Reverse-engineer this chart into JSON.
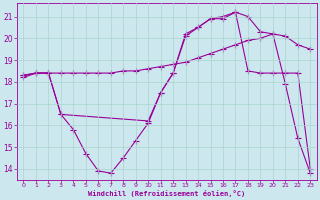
{
  "xlabel": "Windchill (Refroidissement éolien,°C)",
  "background_color": "#cce8ee",
  "grid_color": "#aad4cc",
  "line_color": "#990099",
  "xlim": [
    -0.5,
    23.5
  ],
  "ylim": [
    13.5,
    21.6
  ],
  "yticks": [
    14,
    15,
    16,
    17,
    18,
    19,
    20,
    21
  ],
  "xticks": [
    0,
    1,
    2,
    3,
    4,
    5,
    6,
    7,
    8,
    9,
    10,
    11,
    12,
    13,
    14,
    15,
    16,
    17,
    18,
    19,
    20,
    21,
    22,
    23
  ],
  "series1_x": [
    0,
    1,
    2,
    3,
    4,
    5,
    6,
    7,
    8,
    9,
    10,
    11,
    12,
    13,
    14,
    15,
    16,
    17,
    18,
    19,
    20,
    21,
    22,
    23
  ],
  "series1_y": [
    18.2,
    18.4,
    18.4,
    16.5,
    15.8,
    14.7,
    13.9,
    13.8,
    14.5,
    15.3,
    16.1,
    17.5,
    18.4,
    20.1,
    20.5,
    20.9,
    20.9,
    21.2,
    21.0,
    20.3,
    20.2,
    17.9,
    15.4,
    13.8
  ],
  "series2_x": [
    0,
    1,
    2,
    3,
    4,
    5,
    6,
    7,
    8,
    9,
    10,
    11,
    12,
    13,
    14,
    15,
    16,
    17,
    18,
    19,
    20,
    21,
    22,
    23
  ],
  "series2_y": [
    18.3,
    18.4,
    18.4,
    18.4,
    18.4,
    18.4,
    18.4,
    18.4,
    18.5,
    18.5,
    18.6,
    18.7,
    18.8,
    18.9,
    19.1,
    19.3,
    19.5,
    19.7,
    19.9,
    20.0,
    20.2,
    20.1,
    19.7,
    19.5
  ],
  "series3_x": [
    0,
    1,
    2,
    3,
    10,
    11,
    12,
    13,
    14,
    15,
    16,
    17,
    18,
    19,
    20,
    21,
    22,
    23
  ],
  "series3_y": [
    18.3,
    18.4,
    18.4,
    16.5,
    16.2,
    17.5,
    18.4,
    20.2,
    20.5,
    20.9,
    21.0,
    21.2,
    18.5,
    18.4,
    18.4,
    18.4,
    18.4,
    14.0
  ]
}
